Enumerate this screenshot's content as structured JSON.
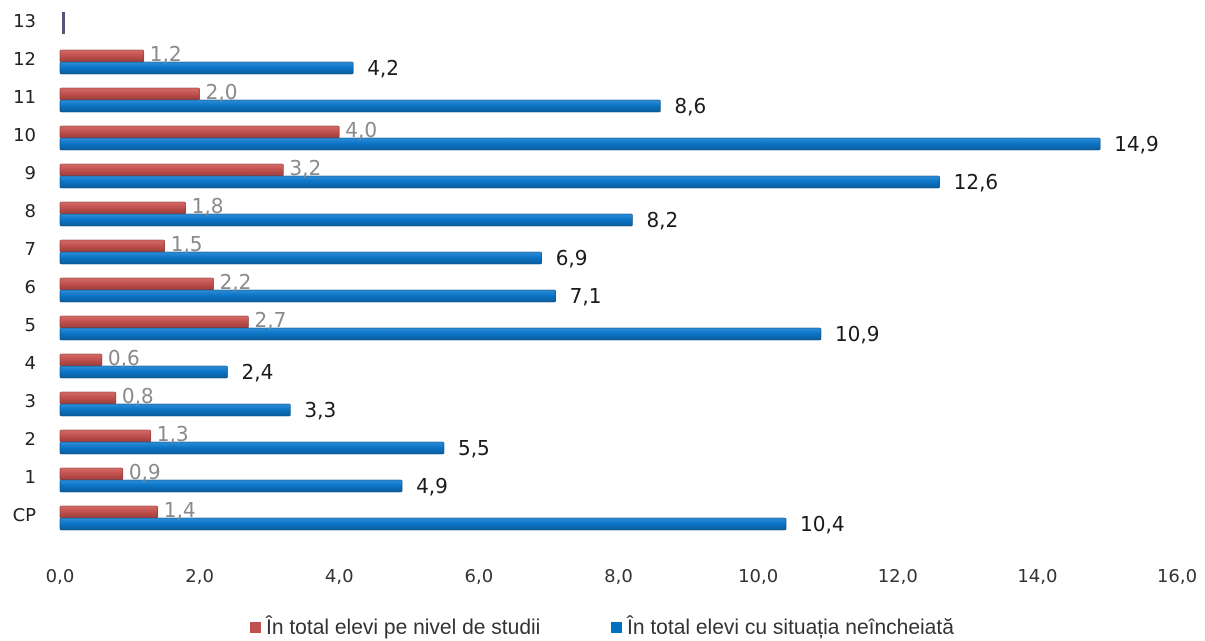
{
  "chart_data": {
    "type": "bar",
    "orientation": "horizontal",
    "categories": [
      "CP",
      "1",
      "2",
      "3",
      "4",
      "5",
      "6",
      "7",
      "8",
      "9",
      "10",
      "11",
      "12",
      "13"
    ],
    "series": [
      {
        "name": "În total elevi pe nivel de studii",
        "color": "#c0504d",
        "values": [
          1.4,
          0.9,
          1.3,
          0.8,
          0.6,
          2.7,
          2.2,
          1.5,
          1.8,
          3.2,
          4.0,
          2.0,
          1.2,
          null
        ],
        "labels": [
          "1,4",
          "0,9",
          "1,3",
          "0,8",
          "0,6",
          "2,7",
          "2,2",
          "1,5",
          "1,8",
          "3,2",
          "4,0",
          "2,0",
          "1,2",
          ""
        ]
      },
      {
        "name": "În total elevi cu situația neîncheiată",
        "color": "#0070c0",
        "values": [
          10.4,
          4.9,
          5.5,
          3.3,
          2.4,
          10.9,
          7.1,
          6.9,
          8.2,
          12.6,
          14.9,
          8.6,
          4.2,
          null
        ],
        "labels": [
          "10,4",
          "4,9",
          "5,5",
          "3,3",
          "2,4",
          "10,9",
          "7,1",
          "6,9",
          "8,2",
          "12,6",
          "14,9",
          "8,6",
          "4,2",
          ""
        ]
      }
    ],
    "xlim": [
      0,
      16
    ],
    "xticks": [
      0,
      2,
      4,
      6,
      8,
      10,
      12,
      14,
      16
    ],
    "xtick_labels": [
      "0,0",
      "2,0",
      "4,0",
      "6,0",
      "8,0",
      "10,0",
      "12,0",
      "14,0",
      "16,0"
    ],
    "grid": false,
    "legend_position": "bottom"
  }
}
